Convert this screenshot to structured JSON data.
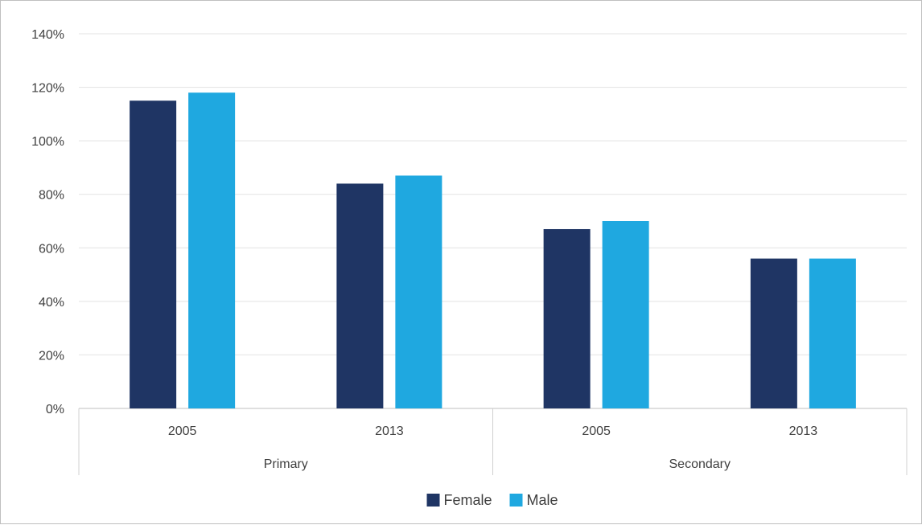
{
  "chart_data": {
    "type": "bar",
    "groups": [
      {
        "label": "Primary",
        "categories": [
          "2005",
          "2013"
        ]
      },
      {
        "label": "Secondary",
        "categories": [
          "2005",
          "2013"
        ]
      }
    ],
    "series": [
      {
        "name": "Female",
        "color": "#1f3564",
        "values": [
          115,
          84,
          67,
          56
        ]
      },
      {
        "name": "Male",
        "color": "#1fa8e0",
        "values": [
          118,
          87,
          70,
          56
        ]
      }
    ],
    "y_ticks": [
      "0%",
      "20%",
      "40%",
      "60%",
      "80%",
      "100%",
      "120%",
      "140%"
    ],
    "ylim": [
      0,
      140
    ],
    "y_unit": "%",
    "grid": true,
    "legend_position": "bottom"
  }
}
